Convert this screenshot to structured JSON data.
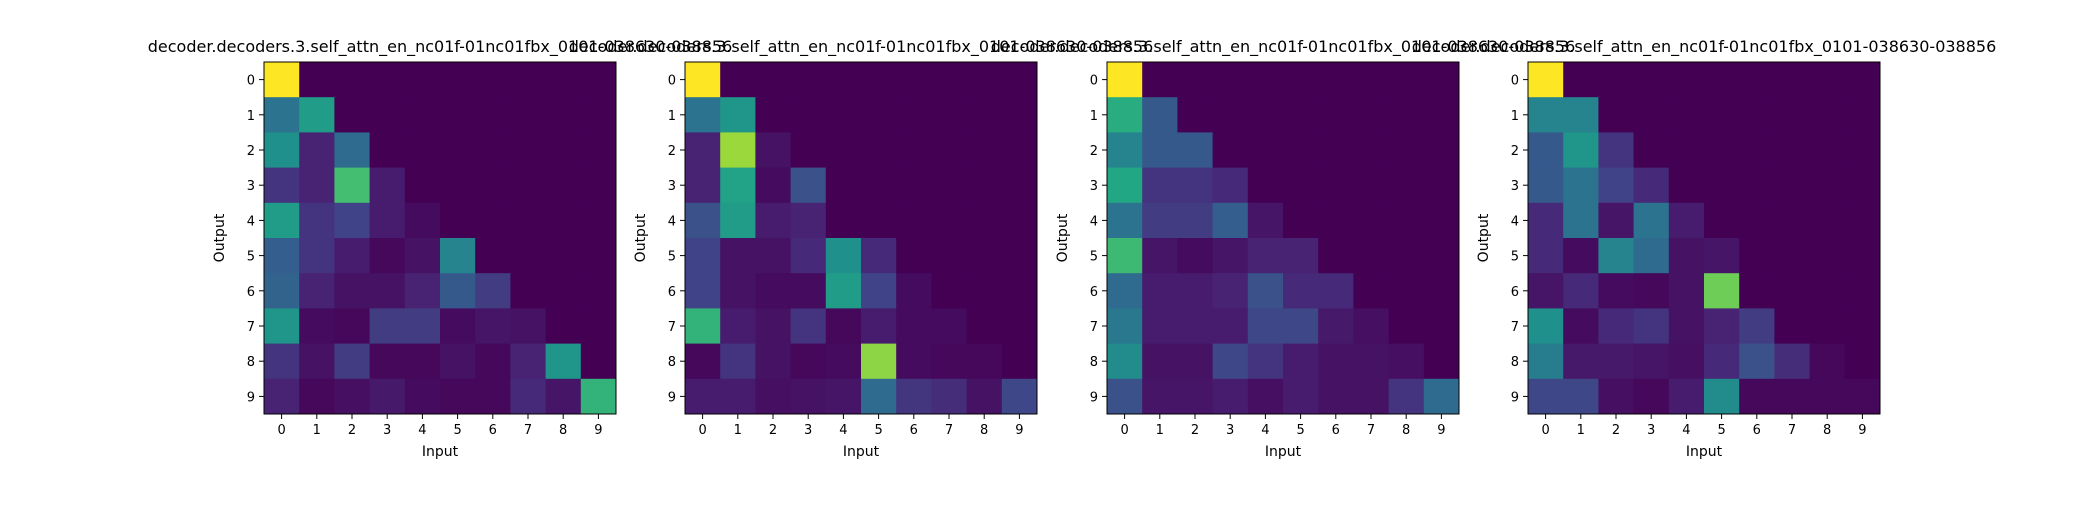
{
  "colormap": "viridis",
  "chart_data": [
    {
      "type": "heatmap",
      "title": "decoder.decoders.3.self_attn_en_nc01f-01nc01fbx_0101-038630-038856",
      "xlabel": "Input",
      "ylabel": "Output",
      "x_ticks": [
        "0",
        "1",
        "2",
        "3",
        "4",
        "5",
        "6",
        "7",
        "8",
        "9"
      ],
      "y_ticks": [
        "0",
        "1",
        "2",
        "3",
        "4",
        "5",
        "6",
        "7",
        "8",
        "9"
      ],
      "value_range": [
        0,
        1
      ],
      "values": [
        [
          1.0,
          0.0,
          0.0,
          0.0,
          0.0,
          0.0,
          0.0,
          0.0,
          0.0,
          0.0
        ],
        [
          0.38,
          0.55,
          0.0,
          0.0,
          0.0,
          0.0,
          0.0,
          0.0,
          0.0,
          0.0
        ],
        [
          0.5,
          0.1,
          0.35,
          0.0,
          0.0,
          0.0,
          0.0,
          0.0,
          0.0,
          0.0
        ],
        [
          0.15,
          0.1,
          0.7,
          0.08,
          0.0,
          0.0,
          0.0,
          0.0,
          0.0,
          0.0
        ],
        [
          0.55,
          0.15,
          0.2,
          0.08,
          0.03,
          0.0,
          0.0,
          0.0,
          0.0,
          0.0
        ],
        [
          0.3,
          0.15,
          0.08,
          0.02,
          0.05,
          0.45,
          0.0,
          0.0,
          0.0,
          0.0
        ],
        [
          0.32,
          0.1,
          0.05,
          0.05,
          0.1,
          0.28,
          0.18,
          0.0,
          0.0,
          0.0
        ],
        [
          0.52,
          0.03,
          0.02,
          0.18,
          0.18,
          0.03,
          0.06,
          0.05,
          0.0,
          0.0
        ],
        [
          0.15,
          0.05,
          0.18,
          0.02,
          0.02,
          0.05,
          0.02,
          0.1,
          0.52,
          0.0
        ],
        [
          0.1,
          0.02,
          0.04,
          0.07,
          0.03,
          0.02,
          0.02,
          0.12,
          0.06,
          0.65
        ]
      ]
    },
    {
      "type": "heatmap",
      "title": "decoder.decoders.3.self_attn_en_nc01f-01nc01fbx_0101-038630-038856",
      "xlabel": "Input",
      "ylabel": "Output",
      "x_ticks": [
        "0",
        "1",
        "2",
        "3",
        "4",
        "5",
        "6",
        "7",
        "8",
        "9"
      ],
      "y_ticks": [
        "0",
        "1",
        "2",
        "3",
        "4",
        "5",
        "6",
        "7",
        "8",
        "9"
      ],
      "value_range": [
        0,
        1
      ],
      "values": [
        [
          1.0,
          0.0,
          0.0,
          0.0,
          0.0,
          0.0,
          0.0,
          0.0,
          0.0,
          0.0
        ],
        [
          0.38,
          0.52,
          0.0,
          0.0,
          0.0,
          0.0,
          0.0,
          0.0,
          0.0,
          0.0
        ],
        [
          0.1,
          0.85,
          0.05,
          0.0,
          0.0,
          0.0,
          0.0,
          0.0,
          0.0,
          0.0
        ],
        [
          0.1,
          0.58,
          0.03,
          0.25,
          0.0,
          0.0,
          0.0,
          0.0,
          0.0,
          0.0
        ],
        [
          0.25,
          0.55,
          0.08,
          0.1,
          0.0,
          0.0,
          0.0,
          0.0,
          0.0,
          0.0
        ],
        [
          0.2,
          0.05,
          0.05,
          0.12,
          0.5,
          0.12,
          0.0,
          0.0,
          0.0,
          0.0
        ],
        [
          0.2,
          0.05,
          0.03,
          0.03,
          0.55,
          0.2,
          0.03,
          0.0,
          0.0,
          0.0
        ],
        [
          0.65,
          0.08,
          0.05,
          0.15,
          0.02,
          0.08,
          0.03,
          0.03,
          0.0,
          0.0
        ],
        [
          0.02,
          0.15,
          0.05,
          0.02,
          0.03,
          0.83,
          0.03,
          0.02,
          0.02,
          0.0
        ],
        [
          0.08,
          0.08,
          0.04,
          0.05,
          0.06,
          0.35,
          0.16,
          0.13,
          0.05,
          0.22
        ]
      ]
    },
    {
      "type": "heatmap",
      "title": "decoder.decoders.3.self_attn_en_nc01f-01nc01fbx_0101-038630-038856",
      "xlabel": "Input",
      "ylabel": "Output",
      "x_ticks": [
        "0",
        "1",
        "2",
        "3",
        "4",
        "5",
        "6",
        "7",
        "8",
        "9"
      ],
      "y_ticks": [
        "0",
        "1",
        "2",
        "3",
        "4",
        "5",
        "6",
        "7",
        "8",
        "9"
      ],
      "value_range": [
        0,
        1
      ],
      "values": [
        [
          1.0,
          0.0,
          0.0,
          0.0,
          0.0,
          0.0,
          0.0,
          0.0,
          0.0,
          0.0
        ],
        [
          0.62,
          0.28,
          0.0,
          0.0,
          0.0,
          0.0,
          0.0,
          0.0,
          0.0,
          0.0
        ],
        [
          0.45,
          0.28,
          0.28,
          0.0,
          0.0,
          0.0,
          0.0,
          0.0,
          0.0,
          0.0
        ],
        [
          0.6,
          0.15,
          0.15,
          0.12,
          0.0,
          0.0,
          0.0,
          0.0,
          0.0,
          0.0
        ],
        [
          0.38,
          0.18,
          0.18,
          0.3,
          0.06,
          0.0,
          0.0,
          0.0,
          0.0,
          0.0
        ],
        [
          0.68,
          0.06,
          0.03,
          0.06,
          0.1,
          0.1,
          0.0,
          0.0,
          0.0,
          0.0
        ],
        [
          0.35,
          0.08,
          0.08,
          0.1,
          0.25,
          0.12,
          0.12,
          0.0,
          0.0,
          0.0
        ],
        [
          0.4,
          0.08,
          0.08,
          0.08,
          0.22,
          0.22,
          0.07,
          0.04,
          0.0,
          0.0
        ],
        [
          0.48,
          0.05,
          0.05,
          0.22,
          0.15,
          0.08,
          0.05,
          0.05,
          0.04,
          0.0
        ],
        [
          0.25,
          0.06,
          0.06,
          0.08,
          0.04,
          0.08,
          0.05,
          0.05,
          0.15,
          0.35
        ]
      ]
    },
    {
      "type": "heatmap",
      "title": "decoder.decoders.3.self_attn_en_nc01f-01nc01fbx_0101-038630-038856",
      "xlabel": "Input",
      "ylabel": "Output",
      "x_ticks": [
        "0",
        "1",
        "2",
        "3",
        "4",
        "5",
        "6",
        "7",
        "8",
        "9"
      ],
      "y_ticks": [
        "0",
        "1",
        "2",
        "3",
        "4",
        "5",
        "6",
        "7",
        "8",
        "9"
      ],
      "value_range": [
        0,
        1
      ],
      "values": [
        [
          1.0,
          0.0,
          0.0,
          0.0,
          0.0,
          0.0,
          0.0,
          0.0,
          0.0,
          0.0
        ],
        [
          0.45,
          0.45,
          0.0,
          0.0,
          0.0,
          0.0,
          0.0,
          0.0,
          0.0,
          0.0
        ],
        [
          0.28,
          0.52,
          0.15,
          0.0,
          0.0,
          0.0,
          0.0,
          0.0,
          0.0,
          0.0
        ],
        [
          0.28,
          0.38,
          0.2,
          0.12,
          0.0,
          0.0,
          0.0,
          0.0,
          0.0,
          0.0
        ],
        [
          0.12,
          0.38,
          0.06,
          0.38,
          0.08,
          0.0,
          0.0,
          0.0,
          0.0,
          0.0
        ],
        [
          0.12,
          0.03,
          0.45,
          0.35,
          0.05,
          0.06,
          0.0,
          0.0,
          0.0,
          0.0
        ],
        [
          0.06,
          0.12,
          0.03,
          0.02,
          0.05,
          0.78,
          0.0,
          0.0,
          0.0,
          0.0
        ],
        [
          0.5,
          0.03,
          0.12,
          0.15,
          0.05,
          0.1,
          0.18,
          0.0,
          0.0,
          0.0
        ],
        [
          0.42,
          0.07,
          0.07,
          0.06,
          0.04,
          0.12,
          0.25,
          0.13,
          0.02,
          0.0
        ],
        [
          0.22,
          0.22,
          0.04,
          0.02,
          0.08,
          0.48,
          0.02,
          0.02,
          0.02,
          0.02
        ]
      ]
    }
  ]
}
